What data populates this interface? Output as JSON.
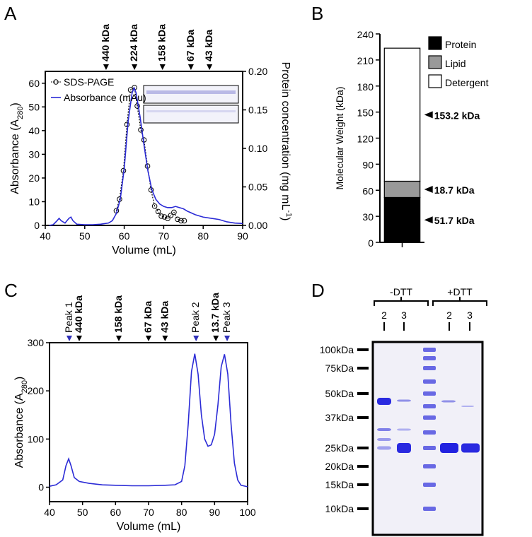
{
  "panels": [
    "A",
    "B",
    "C",
    "D"
  ],
  "chart_data": [
    {
      "type": "line",
      "xlabel": "Volume (mL)",
      "ylabel": {
        "text": "Absorbance  (A",
        "sub": "280",
        "tail": ")"
      },
      "y2label": {
        "text": "Protein concentration (mg mL",
        "sup": "-1",
        "tail": ")"
      },
      "xlim": [
        40,
        90
      ],
      "xticks": [
        40,
        50,
        60,
        70,
        80,
        90
      ],
      "ylim": [
        0,
        65
      ],
      "yticks": [
        0,
        10,
        20,
        30,
        40,
        50,
        60
      ],
      "y2lim": [
        0,
        0.2
      ],
      "y2ticks": [
        {
          "value": 0,
          "label": "0.00"
        },
        {
          "value": 0.05,
          "label": "0.05"
        },
        {
          "value": 0.1,
          "label": "0.10"
        },
        {
          "value": 0.15,
          "label": "0.15"
        },
        {
          "value": 0.2,
          "label": "0.20"
        }
      ],
      "markers": [
        {
          "label": "440 kDa",
          "x": 55.4,
          "color": "#000000"
        },
        {
          "label": "224 kDa",
          "x": 62.6,
          "color": "#000000"
        },
        {
          "label": "158 kDa",
          "x": 69.7,
          "color": "#000000"
        },
        {
          "label": "67 kDa",
          "x": 76.9,
          "color": "#000000"
        },
        {
          "label": "43 kDa",
          "x": 81.6,
          "color": "#000000"
        }
      ],
      "series": [
        {
          "name": "SDS-PAGE",
          "color": "#000000",
          "axis": "y2",
          "marker": "circle",
          "dash": true,
          "x": [
            58,
            58.8,
            59.8,
            60.7,
            61.6,
            62.6,
            63.3,
            64.2,
            65,
            65.9,
            66.8,
            67.7,
            68.6,
            69.4,
            70.2,
            71,
            71.8,
            72.6,
            73.5,
            74.4,
            75.2
          ],
          "values": [
            0.019,
            0.034,
            0.071,
            0.131,
            0.176,
            0.179,
            0.155,
            0.124,
            0.111,
            0.077,
            0.046,
            0.025,
            0.018,
            0.012,
            0.011,
            0.009,
            0.013,
            0.017,
            0.008,
            0.006,
            0.006
          ]
        },
        {
          "name": "Absorbance (mAu)",
          "color": "#2b2bd6",
          "x": [
            41,
            42,
            43,
            43.5,
            44,
            45,
            46,
            46.5,
            47,
            48,
            50,
            52,
            54,
            56,
            57,
            58,
            59,
            60,
            61,
            62,
            62.5,
            63,
            64,
            65,
            66,
            67,
            68,
            69,
            70,
            71,
            72,
            73,
            74,
            75,
            76,
            78,
            80,
            82,
            84,
            86,
            88,
            90
          ],
          "values": [
            0,
            0.3,
            2,
            3,
            2,
            1,
            3,
            3.5,
            2,
            0.5,
            0.3,
            0.3,
            0.5,
            1,
            2,
            5,
            11,
            24,
            44,
            56,
            58,
            56,
            46,
            34,
            23,
            15,
            11,
            9,
            8,
            7.5,
            7.5,
            8,
            7.5,
            7,
            6,
            4.5,
            3.5,
            3,
            2.5,
            1.5,
            1,
            0.8
          ]
        }
      ]
    },
    {
      "type": "bar",
      "stacked": true,
      "ylabel": "Molecular Weight (kDa)",
      "categories": [
        null
      ],
      "ylim": [
        0,
        240
      ],
      "yticks": [
        0,
        30,
        60,
        90,
        120,
        150,
        180,
        210,
        240
      ],
      "series": [
        {
          "name": "Protein",
          "color": "#000000",
          "values": [
            51.7
          ],
          "value_labels": [
            "51.7 kDa"
          ]
        },
        {
          "name": "Lipid",
          "color": "#999999",
          "values": [
            18.7
          ],
          "value_labels": [
            "18.7 kDa"
          ]
        },
        {
          "name": "Detergent",
          "color": "#ffffff",
          "values": [
            153.2
          ],
          "value_labels": [
            "153.2 kDa"
          ]
        }
      ]
    },
    {
      "type": "line",
      "xlabel": "Volume (mL)",
      "ylabel": {
        "text": "Absorbance  (A",
        "sub": "280",
        "tail": ")"
      },
      "xlim": [
        40,
        100
      ],
      "xticks": [
        40,
        50,
        60,
        70,
        80,
        90,
        100
      ],
      "ylim": [
        -30,
        300
      ],
      "yticks": [
        0,
        100,
        200,
        300
      ],
      "markers": [
        {
          "label": "Peak 1",
          "x": 46,
          "color": "#3030b8"
        },
        {
          "label": "440 kDa",
          "x": 49,
          "color": "#000000"
        },
        {
          "label": "158 kDa",
          "x": 61,
          "color": "#000000"
        },
        {
          "label": "67 kDa",
          "x": 70,
          "color": "#000000"
        },
        {
          "label": "43 kDa",
          "x": 75,
          "color": "#000000"
        },
        {
          "label": "Peak 2",
          "x": 84.4,
          "color": "#3030b8"
        },
        {
          "label": "13.7 kDa",
          "x": 90.4,
          "color": "#000000"
        },
        {
          "label": "Peak 3",
          "x": 93.8,
          "color": "#3030b8"
        }
      ],
      "series": [
        {
          "color": "#2b2bd6",
          "x": [
            40,
            42,
            44,
            45,
            45.8,
            46.5,
            47.5,
            49,
            52,
            56,
            60,
            65,
            70,
            75,
            78,
            80,
            81,
            82,
            83,
            84,
            85,
            86,
            87,
            88,
            89,
            90,
            91,
            92,
            93,
            94,
            95,
            96,
            97,
            98,
            100
          ],
          "values": [
            2,
            5,
            15,
            45,
            59,
            45,
            20,
            12,
            8,
            5,
            4,
            3,
            3,
            4,
            5,
            12,
            45,
            130,
            240,
            277,
            235,
            150,
            100,
            85,
            88,
            110,
            170,
            250,
            276,
            235,
            130,
            50,
            15,
            4,
            1
          ]
        }
      ]
    }
  ],
  "gel": {
    "groups": [
      "-DTT",
      "+DTT"
    ],
    "lanes": [
      "2",
      "3",
      "2",
      "3"
    ],
    "ladder": [
      "100kDa",
      "75kDa",
      "50kDa",
      "37kDa",
      "25kDa",
      "20kDa",
      "15kDa",
      "10kDa"
    ]
  }
}
